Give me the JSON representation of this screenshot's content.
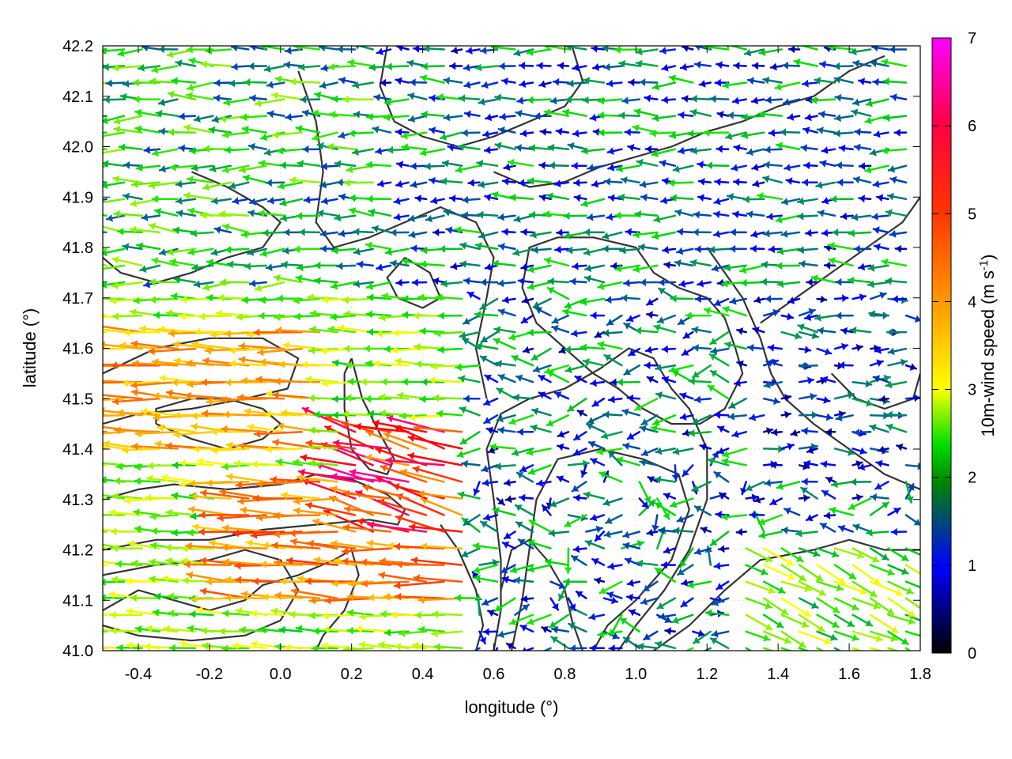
{
  "chart_data": {
    "type": "quiver",
    "title": "",
    "xlabel": "longitude (°)",
    "ylabel": "latitude (°)",
    "colorbar_label": "10m-wind speed (m s",
    "colorbar_label_sup": "-1",
    "colorbar_label_end": ")",
    "xlim": [
      -0.5,
      1.8
    ],
    "ylim": [
      41.0,
      42.2
    ],
    "x_ticks": [
      -0.4,
      -0.2,
      0.0,
      0.2,
      0.4,
      0.6,
      0.8,
      1.0,
      1.2,
      1.4,
      1.6,
      1.8
    ],
    "x_tick_labels": [
      "-0.4",
      "-0.2",
      "0.0",
      "0.2",
      "0.4",
      "0.6",
      "0.8",
      "1.0",
      "1.2",
      "1.4",
      "1.6",
      "1.8"
    ],
    "y_ticks": [
      41.0,
      41.1,
      41.2,
      41.3,
      41.4,
      41.5,
      41.6,
      41.7,
      41.8,
      41.9,
      42.0,
      42.1,
      42.2
    ],
    "y_tick_labels": [
      "41.0",
      "41.1",
      "41.2",
      "41.3",
      "41.4",
      "41.5",
      "41.6",
      "41.7",
      "41.8",
      "41.9",
      "42.0",
      "42.1",
      "42.2"
    ],
    "colorbar_range": [
      0,
      7
    ],
    "colorbar_ticks": [
      "0",
      "1",
      "2",
      "3",
      "4",
      "5",
      "6",
      "7"
    ],
    "colormap": [
      "#000000",
      "#0000ff",
      "#00e000",
      "#ffff00",
      "#ff9900",
      "#ff0000",
      "#ff00ff"
    ],
    "contour_color": "#333333",
    "grid": "dotted",
    "wind_regions": [
      {
        "region": "west, lat 41.0-41.7",
        "direction_deg": 180,
        "speed_range": [
          2,
          6.5
        ]
      },
      {
        "region": "center, lat 41.2-41.45, lon 0.2-0.55",
        "direction_deg": 160,
        "speed_range": [
          4,
          7
        ]
      },
      {
        "region": "north, lat 41.7-42.2",
        "direction_deg": 180,
        "speed_range": [
          0.5,
          3
        ]
      },
      {
        "region": "east, lon 1.4-1.8, lat 41.4-41.8",
        "direction_deg": 0,
        "speed_range": [
          0.5,
          2
        ]
      },
      {
        "region": "southeast, lon 1.2-1.8, lat 41.0-41.2",
        "direction_deg": 330,
        "speed_range": [
          2,
          3.5
        ]
      }
    ],
    "contours": [
      [
        [
          -0.5,
          41.55
        ],
        [
          -0.35,
          41.6
        ],
        [
          -0.2,
          41.62
        ],
        [
          -0.05,
          41.62
        ],
        [
          0.05,
          41.58
        ],
        [
          0.02,
          41.52
        ],
        [
          -0.1,
          41.5
        ],
        [
          -0.25,
          41.48
        ],
        [
          -0.4,
          41.47
        ],
        [
          -0.5,
          41.45
        ]
      ],
      [
        [
          -0.5,
          41.3
        ],
        [
          -0.4,
          41.32
        ],
        [
          -0.3,
          41.33
        ],
        [
          -0.15,
          41.32
        ],
        [
          0.0,
          41.33
        ],
        [
          0.1,
          41.35
        ],
        [
          0.2,
          41.34
        ],
        [
          0.3,
          41.31
        ],
        [
          0.35,
          41.28
        ],
        [
          0.33,
          41.25
        ],
        [
          0.25,
          41.26
        ],
        [
          0.1,
          41.25
        ],
        [
          -0.05,
          41.24
        ],
        [
          -0.2,
          41.22
        ],
        [
          -0.35,
          41.22
        ],
        [
          -0.5,
          41.2
        ]
      ],
      [
        [
          0.2,
          41.58
        ],
        [
          0.23,
          41.5
        ],
        [
          0.28,
          41.43
        ],
        [
          0.32,
          41.38
        ],
        [
          0.3,
          41.35
        ],
        [
          0.25,
          41.36
        ],
        [
          0.2,
          41.4
        ],
        [
          0.18,
          41.48
        ],
        [
          0.18,
          41.55
        ],
        [
          0.2,
          41.58
        ]
      ],
      [
        [
          0.35,
          41.78
        ],
        [
          0.42,
          41.75
        ],
        [
          0.45,
          41.7
        ],
        [
          0.4,
          41.68
        ],
        [
          0.33,
          41.7
        ],
        [
          0.3,
          41.74
        ],
        [
          0.35,
          41.78
        ]
      ],
      [
        [
          0.45,
          41.25
        ],
        [
          0.5,
          41.2
        ],
        [
          0.55,
          41.12
        ],
        [
          0.57,
          41.05
        ],
        [
          0.55,
          41.0
        ]
      ],
      [
        [
          0.6,
          41.0
        ],
        [
          0.62,
          41.08
        ],
        [
          0.62,
          41.18
        ],
        [
          0.6,
          41.3
        ],
        [
          0.58,
          41.4
        ],
        [
          0.62,
          41.47
        ],
        [
          0.7,
          41.5
        ],
        [
          0.8,
          41.52
        ],
        [
          0.9,
          41.56
        ],
        [
          0.98,
          41.6
        ],
        [
          1.05,
          41.58
        ],
        [
          1.1,
          41.52
        ],
        [
          1.15,
          41.48
        ],
        [
          1.2,
          41.4
        ],
        [
          1.2,
          41.3
        ],
        [
          1.15,
          41.2
        ],
        [
          1.08,
          41.12
        ],
        [
          1.0,
          41.05
        ],
        [
          0.95,
          41.0
        ]
      ],
      [
        [
          0.65,
          41.0
        ],
        [
          0.68,
          41.1
        ],
        [
          0.7,
          41.2
        ],
        [
          0.72,
          41.3
        ],
        [
          0.78,
          41.38
        ],
        [
          0.9,
          41.4
        ],
        [
          1.02,
          41.38
        ],
        [
          1.12,
          41.35
        ],
        [
          1.15,
          41.28
        ],
        [
          1.1,
          41.18
        ],
        [
          1.0,
          41.1
        ],
        [
          0.92,
          41.05
        ],
        [
          0.88,
          41.0
        ]
      ],
      [
        [
          1.05,
          41.0
        ],
        [
          1.15,
          41.05
        ],
        [
          1.25,
          41.12
        ],
        [
          1.35,
          41.18
        ],
        [
          1.5,
          41.2
        ],
        [
          1.6,
          41.22
        ],
        [
          1.7,
          41.2
        ],
        [
          1.8,
          41.2
        ]
      ],
      [
        [
          -0.5,
          41.15
        ],
        [
          -0.35,
          41.17
        ],
        [
          -0.2,
          41.18
        ],
        [
          -0.1,
          41.2
        ],
        [
          0.0,
          41.18
        ],
        [
          0.05,
          41.12
        ],
        [
          0.0,
          41.06
        ],
        [
          -0.1,
          41.03
        ],
        [
          -0.25,
          41.02
        ],
        [
          -0.4,
          41.03
        ],
        [
          -0.5,
          41.05
        ]
      ],
      [
        [
          -0.25,
          41.95
        ],
        [
          -0.15,
          41.92
        ],
        [
          -0.05,
          41.88
        ],
        [
          0.0,
          41.85
        ],
        [
          -0.05,
          41.8
        ],
        [
          -0.15,
          41.78
        ],
        [
          -0.25,
          41.75
        ],
        [
          -0.35,
          41.73
        ],
        [
          -0.45,
          41.75
        ],
        [
          -0.5,
          41.78
        ]
      ],
      [
        [
          0.05,
          42.15
        ],
        [
          0.1,
          42.05
        ],
        [
          0.12,
          41.95
        ],
        [
          0.1,
          41.85
        ],
        [
          0.15,
          41.8
        ],
        [
          0.25,
          41.82
        ],
        [
          0.35,
          41.85
        ],
        [
          0.45,
          41.88
        ],
        [
          0.55,
          41.85
        ],
        [
          0.6,
          41.78
        ],
        [
          0.58,
          41.7
        ],
        [
          0.55,
          41.6
        ],
        [
          0.58,
          41.5
        ]
      ],
      [
        [
          0.6,
          41.95
        ],
        [
          0.7,
          41.92
        ],
        [
          0.8,
          41.93
        ],
        [
          0.9,
          41.96
        ],
        [
          1.0,
          41.98
        ],
        [
          1.1,
          42.0
        ],
        [
          1.2,
          42.03
        ],
        [
          1.3,
          42.05
        ],
        [
          1.4,
          42.08
        ],
        [
          1.5,
          42.1
        ],
        [
          1.6,
          42.15
        ],
        [
          1.7,
          42.18
        ]
      ],
      [
        [
          0.3,
          42.2
        ],
        [
          0.28,
          42.12
        ],
        [
          0.32,
          42.05
        ],
        [
          0.4,
          42.02
        ],
        [
          0.5,
          42.0
        ],
        [
          0.6,
          42.02
        ],
        [
          0.7,
          42.05
        ],
        [
          0.8,
          42.08
        ],
        [
          0.85,
          42.13
        ],
        [
          0.82,
          42.2
        ]
      ],
      [
        [
          1.35,
          41.65
        ],
        [
          1.45,
          41.7
        ],
        [
          1.55,
          41.75
        ],
        [
          1.65,
          41.8
        ],
        [
          1.75,
          41.85
        ],
        [
          1.8,
          41.9
        ]
      ],
      [
        [
          1.55,
          41.55
        ],
        [
          1.62,
          41.5
        ],
        [
          1.7,
          41.48
        ],
        [
          1.78,
          41.5
        ],
        [
          1.8,
          41.55
        ]
      ],
      [
        [
          -0.5,
          41.08
        ],
        [
          -0.45,
          41.1
        ],
        [
          -0.4,
          41.12
        ],
        [
          -0.3,
          41.1
        ],
        [
          -0.2,
          41.08
        ],
        [
          -0.1,
          41.1
        ],
        [
          -0.05,
          41.13
        ],
        [
          0.05,
          41.15
        ],
        [
          0.15,
          41.18
        ],
        [
          0.2,
          41.2
        ],
        [
          0.22,
          41.15
        ],
        [
          0.18,
          41.08
        ],
        [
          0.12,
          41.03
        ],
        [
          0.1,
          41.0
        ]
      ],
      [
        [
          0.85,
          41.0
        ],
        [
          0.82,
          41.06
        ],
        [
          0.8,
          41.12
        ],
        [
          0.75,
          41.18
        ],
        [
          0.7,
          41.22
        ],
        [
          0.65,
          41.2
        ],
        [
          0.62,
          41.12
        ]
      ],
      [
        [
          1.2,
          41.8
        ],
        [
          1.25,
          41.75
        ],
        [
          1.3,
          41.7
        ],
        [
          1.35,
          41.62
        ],
        [
          1.38,
          41.55
        ],
        [
          1.42,
          41.5
        ],
        [
          1.5,
          41.45
        ],
        [
          1.6,
          41.4
        ],
        [
          1.7,
          41.35
        ],
        [
          1.8,
          41.32
        ]
      ],
      [
        [
          1.0,
          41.8
        ],
        [
          1.05,
          41.75
        ],
        [
          1.12,
          41.72
        ],
        [
          1.2,
          41.7
        ],
        [
          1.25,
          41.66
        ],
        [
          1.28,
          41.6
        ],
        [
          1.3,
          41.55
        ],
        [
          1.25,
          41.48
        ],
        [
          1.18,
          41.45
        ],
        [
          1.1,
          41.45
        ],
        [
          1.02,
          41.48
        ],
        [
          0.95,
          41.52
        ],
        [
          0.88,
          41.55
        ],
        [
          0.8,
          41.6
        ],
        [
          0.72,
          41.65
        ],
        [
          0.68,
          41.72
        ],
        [
          0.7,
          41.8
        ],
        [
          0.78,
          41.82
        ],
        [
          0.88,
          41.82
        ],
        [
          1.0,
          41.8
        ]
      ],
      [
        [
          -0.35,
          41.45
        ],
        [
          -0.25,
          41.42
        ],
        [
          -0.15,
          41.4
        ],
        [
          -0.05,
          41.42
        ],
        [
          0.0,
          41.45
        ],
        [
          -0.05,
          41.48
        ],
        [
          -0.15,
          41.5
        ],
        [
          -0.25,
          41.5
        ],
        [
          -0.35,
          41.48
        ],
        [
          -0.35,
          41.45
        ]
      ]
    ]
  }
}
